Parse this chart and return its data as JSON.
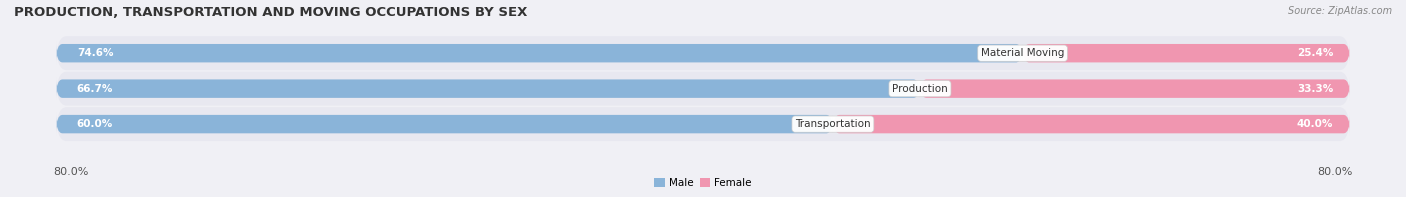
{
  "title": "PRODUCTION, TRANSPORTATION AND MOVING OCCUPATIONS BY SEX",
  "source": "Source: ZipAtlas.com",
  "categories": [
    "Material Moving",
    "Production",
    "Transportation"
  ],
  "male_values": [
    74.6,
    66.7,
    60.0
  ],
  "female_values": [
    25.4,
    33.3,
    40.0
  ],
  "male_color": "#8ab4d9",
  "female_color": "#f096b0",
  "male_label": "Male",
  "female_label": "Female",
  "axis_min": 0.0,
  "axis_max": 100.0,
  "display_left": "80.0%",
  "display_right": "80.0%",
  "background_color": "#f0f0f5",
  "bar_bg_color": "#e2e2ea",
  "row_bg_color": "#e8e8f0",
  "title_fontsize": 9.5,
  "source_fontsize": 7,
  "label_fontsize": 7.5,
  "tick_fontsize": 8,
  "bar_height": 0.52,
  "row_sep_color": "#ffffff"
}
